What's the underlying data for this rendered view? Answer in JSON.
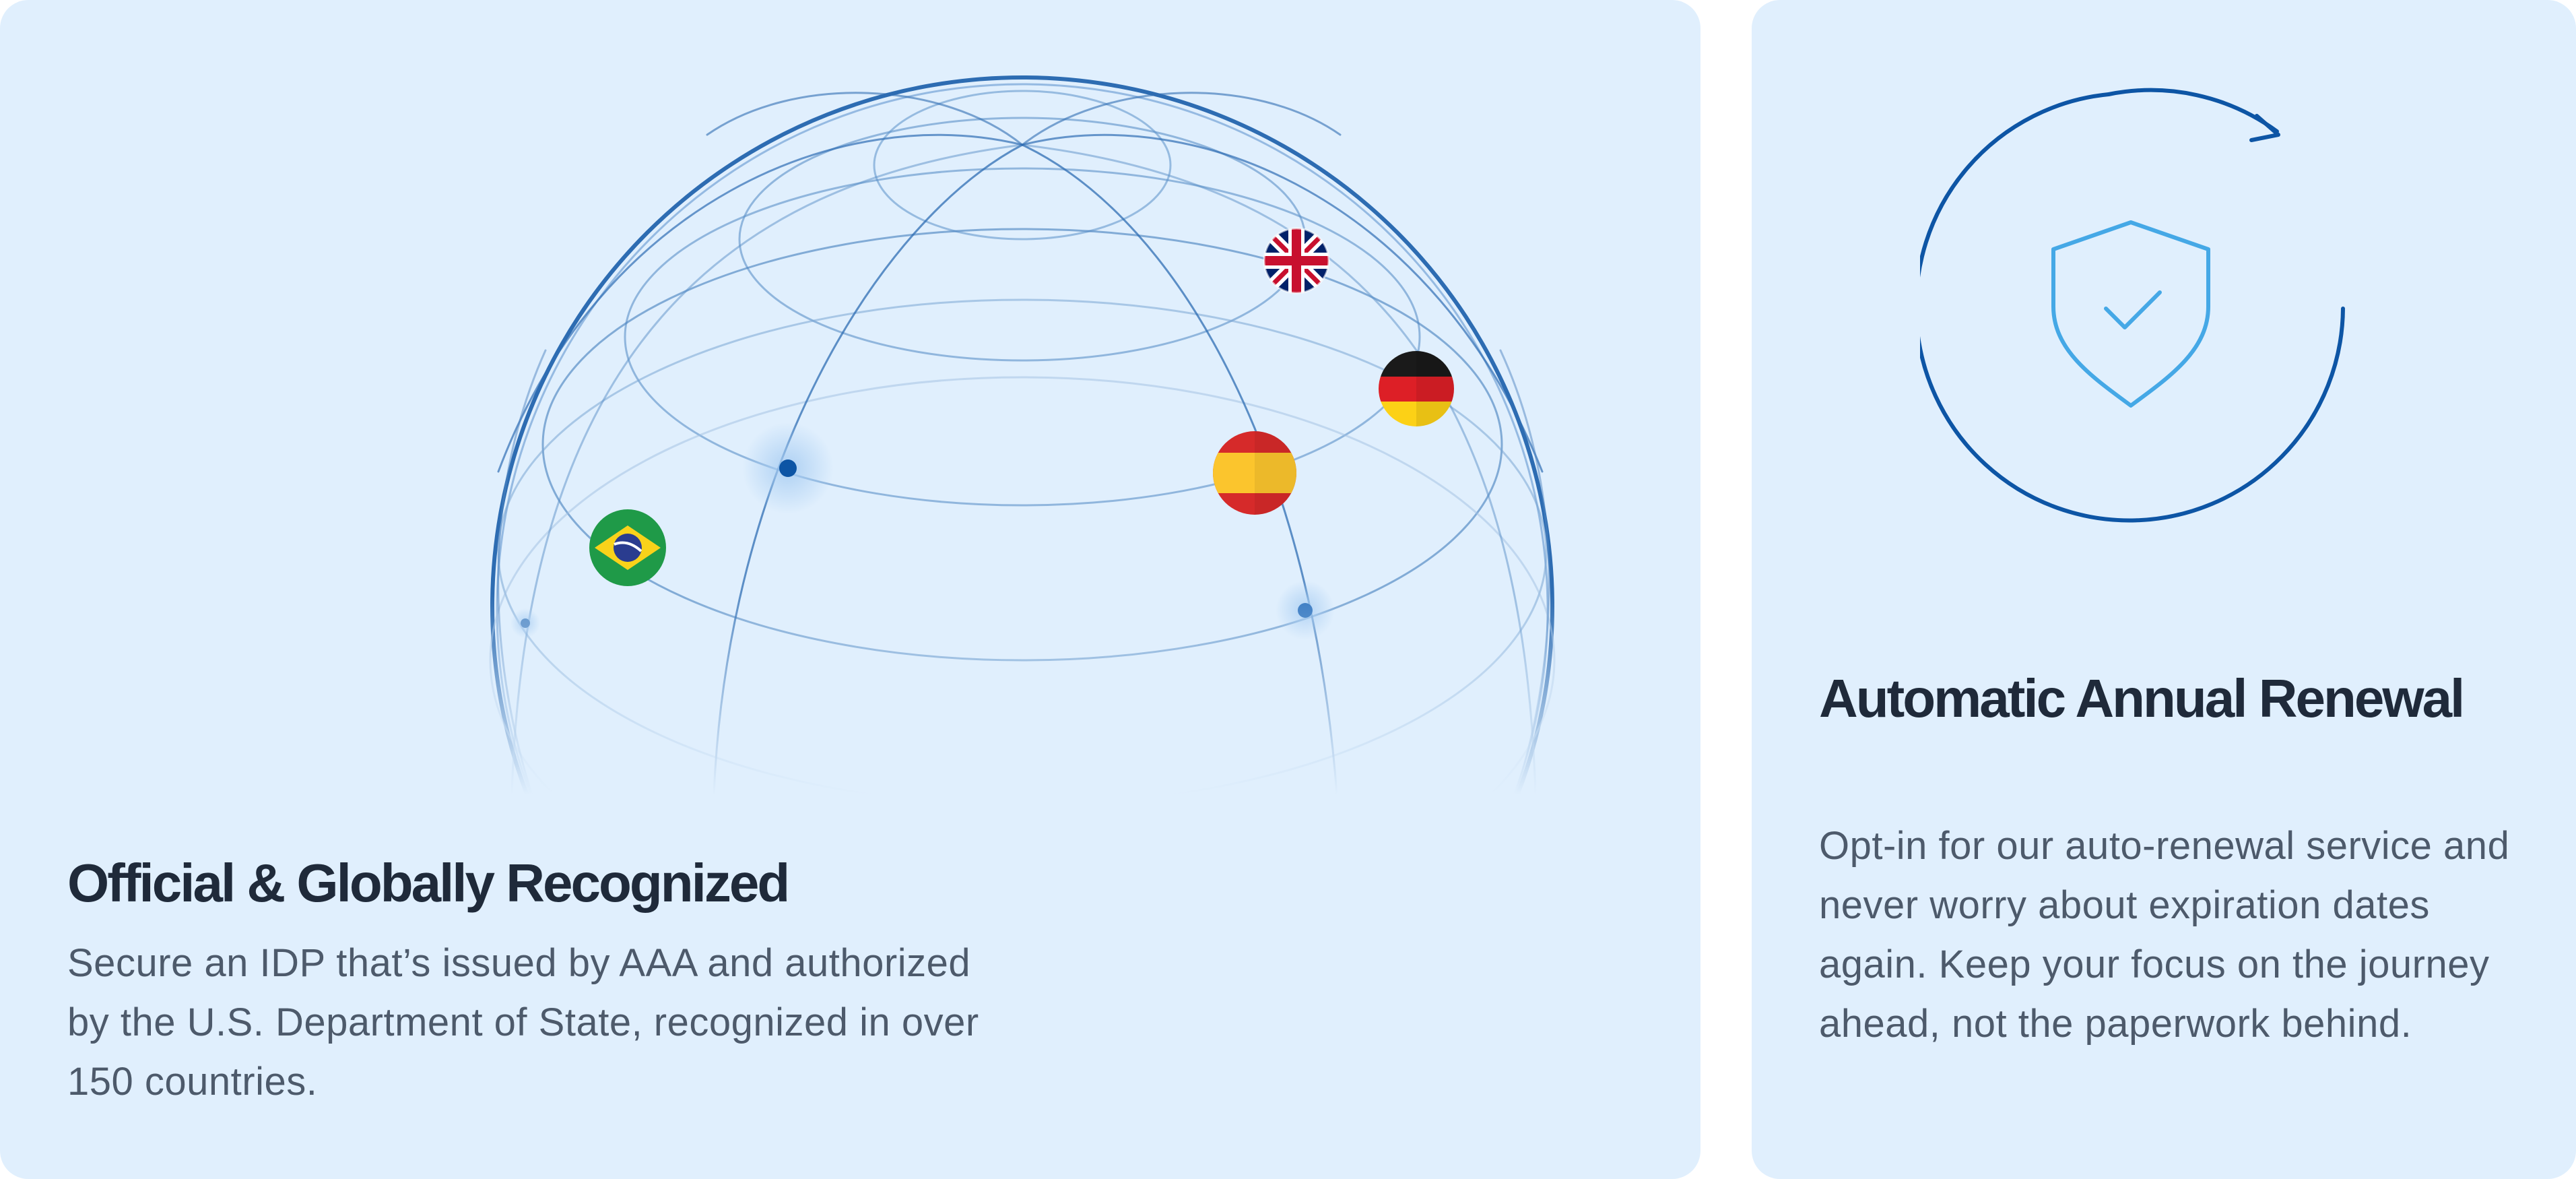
{
  "cards": [
    {
      "title": "Official & Globally Recognized",
      "description": "Secure an IDP that’s issued by AAA and authorized by the U.S. Department of State, recognized in over 150 countries.",
      "illustration": "globe-with-flags",
      "flags": [
        "uk",
        "germany",
        "spain",
        "brazil"
      ]
    },
    {
      "title": "Automatic Annual Renewal",
      "description": "Opt-in for our auto-renewal service and never worry about expiration dates again. Keep your focus on the journey ahead, not the paperwork behind.",
      "illustration": "shield-check-with-renew-arrow"
    }
  ],
  "colors": {
    "card_background": "#e0effd",
    "globe_line": "#0d55a5",
    "title_text": "#1f2a3a",
    "body_text": "#4d5a6b",
    "shield": "#45a8e6"
  }
}
